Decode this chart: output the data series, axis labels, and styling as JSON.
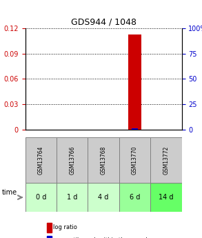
{
  "title": "GDS944 / 1048",
  "samples": [
    "GSM13764",
    "GSM13766",
    "GSM13768",
    "GSM13770",
    "GSM13772"
  ],
  "time_labels": [
    "0 d",
    "1 d",
    "4 d",
    "6 d",
    "14 d"
  ],
  "log_ratio_values": [
    0,
    0,
    0,
    0.113,
    0
  ],
  "percentile_values": [
    0,
    0,
    0,
    0.715,
    0
  ],
  "bar_colors_log": [
    "#cc0000",
    "#cc0000",
    "#cc0000",
    "#cc0000",
    "#cc0000"
  ],
  "bar_colors_pct": [
    "#0000cc",
    "#0000cc",
    "#0000cc",
    "#0000cc",
    "#0000cc"
  ],
  "ylim_left": [
    0,
    0.12
  ],
  "ylim_right": [
    0,
    100
  ],
  "yticks_left": [
    0,
    0.03,
    0.06,
    0.09,
    0.12
  ],
  "yticks_right": [
    0,
    25,
    50,
    75,
    100
  ],
  "ytick_labels_left": [
    "0",
    "0.03",
    "0.06",
    "0.09",
    "0.12"
  ],
  "ytick_labels_right": [
    "0",
    "25",
    "50",
    "75",
    "100%"
  ],
  "left_tick_color": "#cc0000",
  "right_tick_color": "#0000cc",
  "grid_color": "#000000",
  "bg_color": "#ffffff",
  "sample_box_color": "#cccccc",
  "time_box_colors": [
    "#ccffcc",
    "#ccffcc",
    "#ccffcc",
    "#99ff99",
    "#66ff66"
  ],
  "active_sample_idx": 3,
  "legend_log_color": "#cc0000",
  "legend_pct_color": "#0000cc",
  "bar_width": 0.4
}
